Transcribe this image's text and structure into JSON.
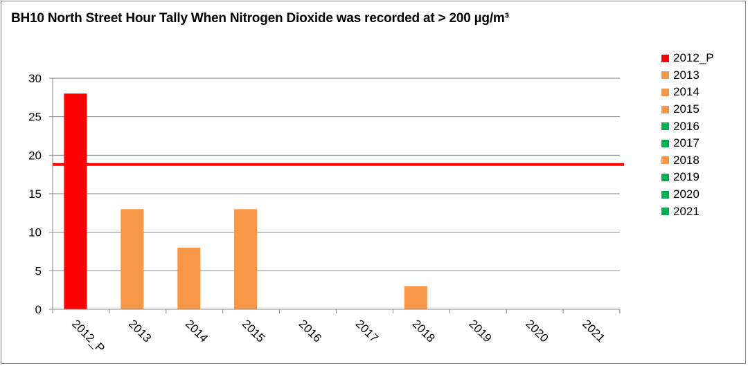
{
  "chart_data": {
    "type": "bar",
    "title": "BH10 North Street Hour Tally When Nitrogen Dioxide was recorded at > 200 µg/m³",
    "categories": [
      "2012_P",
      "2013",
      "2014",
      "2015",
      "2016",
      "2017",
      "2018",
      "2019",
      "2020",
      "2021"
    ],
    "values": [
      28,
      13,
      8,
      13,
      0,
      0,
      3,
      0,
      0,
      0
    ],
    "bar_colors": [
      "#ff0000",
      "#f79646",
      "#f79646",
      "#f79646",
      "#00b050",
      "#00b050",
      "#f79646",
      "#00b050",
      "#00b050",
      "#00b050"
    ],
    "ylim": [
      0,
      30
    ],
    "yticks": [
      "0",
      "5",
      "10",
      "15",
      "20",
      "25",
      "30"
    ],
    "reference_line": {
      "value": 18.8,
      "color": "#ff0000"
    },
    "grid": true,
    "legend_position": "right",
    "legend": [
      {
        "label": "2012_P",
        "color": "#ff0000"
      },
      {
        "label": "2013",
        "color": "#f79646"
      },
      {
        "label": "2014",
        "color": "#f79646"
      },
      {
        "label": "2015",
        "color": "#f79646"
      },
      {
        "label": "2016",
        "color": "#00b050"
      },
      {
        "label": "2017",
        "color": "#00b050"
      },
      {
        "label": "2018",
        "color": "#f79646"
      },
      {
        "label": "2019",
        "color": "#00b050"
      },
      {
        "label": "2020",
        "color": "#00b050"
      },
      {
        "label": "2021",
        "color": "#00b050"
      }
    ]
  }
}
